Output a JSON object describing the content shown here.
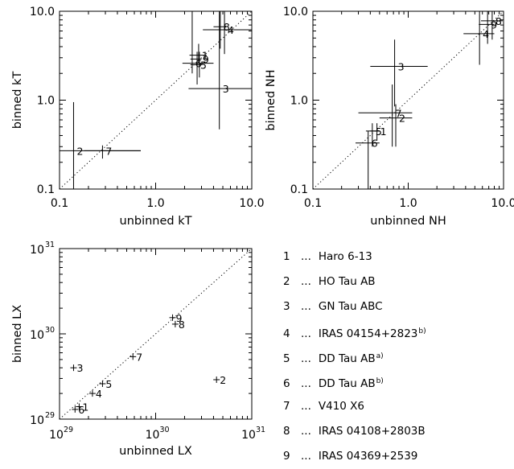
{
  "chart_data": [
    {
      "type": "scatter",
      "xlabel": "unbinned kT",
      "ylabel": "binned kT",
      "xlim": [
        0.1,
        10.0
      ],
      "ylim": [
        0.1,
        10.0
      ],
      "log_x": true,
      "log_y": true,
      "reference_line": "y = x (dotted)",
      "grid": false,
      "x_ticks": [
        "0.1",
        "1.0",
        "10.0"
      ],
      "y_ticks": [
        "0.1",
        "1.0",
        "10.0"
      ],
      "points": [
        {
          "label": "1",
          "x": 2.8,
          "y": 3.2,
          "xerr": [
            2.25,
            3.4
          ],
          "yerr": [
            2.6,
            4.3
          ]
        },
        {
          "label": "2",
          "x": 0.14,
          "y": 0.27,
          "xerr": [
            0.1,
            0.7
          ],
          "yerr": [
            0.1,
            0.95
          ]
        },
        {
          "label": "3",
          "x": 4.6,
          "y": 1.35,
          "xerr": [
            2.2,
            10.0
          ],
          "yerr": [
            0.47,
            10.0
          ]
        },
        {
          "label": "4",
          "x": 5.2,
          "y": 6.2,
          "xerr": [
            3.1,
            10.0
          ],
          "yerr": [
            3.3,
            10.0
          ]
        },
        {
          "label": "5",
          "x": 2.7,
          "y": 2.5,
          "xerr": [
            2.3,
            3.0
          ],
          "yerr": [
            1.5,
            3.5
          ]
        },
        {
          "label": "6",
          "x": 2.4,
          "y": 2.6,
          "xerr": [
            1.9,
            4.0
          ],
          "yerr": [
            2.0,
            10.0
          ]
        },
        {
          "label": "7",
          "x": 0.28,
          "y": 0.27,
          "xerr": [
            0.18,
            0.7
          ],
          "yerr": [
            0.22,
            0.31
          ]
        },
        {
          "label": "8",
          "x": 4.7,
          "y": 6.7,
          "xerr": [
            4.0,
            5.4
          ],
          "yerr": [
            3.8,
            10.0
          ]
        },
        {
          "label": "9",
          "x": 2.85,
          "y": 2.9,
          "xerr": [
            2.3,
            3.0
          ],
          "yerr": [
            1.8,
            3.5
          ]
        }
      ]
    },
    {
      "type": "scatter",
      "xlabel": "unbinned NH",
      "ylabel": "binned NH",
      "xlim": [
        0.1,
        10.0
      ],
      "ylim": [
        0.1,
        10.0
      ],
      "log_x": true,
      "log_y": true,
      "reference_line": "y = x (dotted)",
      "grid": false,
      "x_ticks": [
        "0.1",
        "1.0",
        "10.0"
      ],
      "y_ticks": [
        "0.1",
        "1.0",
        "10.0"
      ],
      "points": [
        {
          "label": "1",
          "x": 0.47,
          "y": 0.45,
          "xerr": [
            0.4,
            0.5
          ],
          "yerr": [
            0.35,
            0.55
          ]
        },
        {
          "label": "2",
          "x": 0.74,
          "y": 0.63,
          "xerr": [
            0.5,
            1.1
          ],
          "yerr": [
            0.3,
            0.9
          ]
        },
        {
          "label": "3",
          "x": 0.72,
          "y": 2.4,
          "xerr": [
            0.4,
            1.6
          ],
          "yerr": [
            0.85,
            4.8
          ]
        },
        {
          "label": "4",
          "x": 5.6,
          "y": 5.6,
          "xerr": [
            3.8,
            8.0
          ],
          "yerr": [
            2.5,
            10.0
          ]
        },
        {
          "label": "5",
          "x": 0.42,
          "y": 0.45,
          "xerr": [
            0.36,
            0.5
          ],
          "yerr": [
            0.3,
            0.55
          ]
        },
        {
          "label": "6",
          "x": 0.38,
          "y": 0.33,
          "xerr": [
            0.28,
            0.5
          ],
          "yerr": [
            0.1,
            0.45
          ]
        },
        {
          "label": "7",
          "x": 0.68,
          "y": 0.72,
          "xerr": [
            0.3,
            1.1
          ],
          "yerr": [
            0.3,
            1.5
          ]
        },
        {
          "label": "8",
          "x": 7.6,
          "y": 7.8,
          "xerr": [
            5.8,
            9.8
          ],
          "yerr": [
            4.8,
            10.0
          ]
        },
        {
          "label": "9",
          "x": 6.8,
          "y": 7.1,
          "xerr": [
            5.5,
            8.0
          ],
          "yerr": [
            4.3,
            10.0
          ]
        }
      ]
    },
    {
      "type": "scatter",
      "xlabel": "unbinned LX",
      "ylabel": "binned LX",
      "xlim": [
        1e+29,
        1e+31
      ],
      "ylim": [
        1e+29,
        1e+31
      ],
      "log_x": true,
      "log_y": true,
      "reference_line": "y = x (dotted)",
      "grid": false,
      "x_ticks": [
        {
          "base": "10",
          "exp": "29"
        },
        {
          "base": "10",
          "exp": "30"
        },
        {
          "base": "10",
          "exp": "31"
        }
      ],
      "y_ticks": [
        {
          "base": "10",
          "exp": "29"
        },
        {
          "base": "10",
          "exp": "30"
        },
        {
          "base": "10",
          "exp": "31"
        }
      ],
      "points": [
        {
          "label": "1",
          "x": 1.6e+29,
          "y": 1.4e+29
        },
        {
          "label": "2",
          "x": 4.3e+30,
          "y": 2.9e+29
        },
        {
          "label": "3",
          "x": 1.4e+29,
          "y": 4e+29
        },
        {
          "label": "4",
          "x": 2.2e+29,
          "y": 2e+29
        },
        {
          "label": "5",
          "x": 2.8e+29,
          "y": 2.6e+29
        },
        {
          "label": "6",
          "x": 1.45e+29,
          "y": 1.3e+29
        },
        {
          "label": "7",
          "x": 5.8e+29,
          "y": 5.4e+29
        },
        {
          "label": "8",
          "x": 1.6e+30,
          "y": 1.3e+30
        },
        {
          "label": "9",
          "x": 1.5e+30,
          "y": 1.55e+30
        }
      ]
    }
  ],
  "legend": {
    "separator": "...",
    "items": [
      {
        "num": "1",
        "name": "Haro 6-13",
        "sup": ""
      },
      {
        "num": "2",
        "name": "HO Tau AB",
        "sup": ""
      },
      {
        "num": "3",
        "name": "GN Tau ABC",
        "sup": ""
      },
      {
        "num": "4",
        "name": "IRAS 04154+2823",
        "sup": "b)"
      },
      {
        "num": "5",
        "name": "DD Tau AB",
        "sup": "a)"
      },
      {
        "num": "6",
        "name": "DD Tau AB",
        "sup": "b)"
      },
      {
        "num": "7",
        "name": "V410 X6",
        "sup": ""
      },
      {
        "num": "8",
        "name": "IRAS 04108+2803B",
        "sup": ""
      },
      {
        "num": "9",
        "name": "IRAS 04369+2539",
        "sup": ""
      }
    ]
  }
}
